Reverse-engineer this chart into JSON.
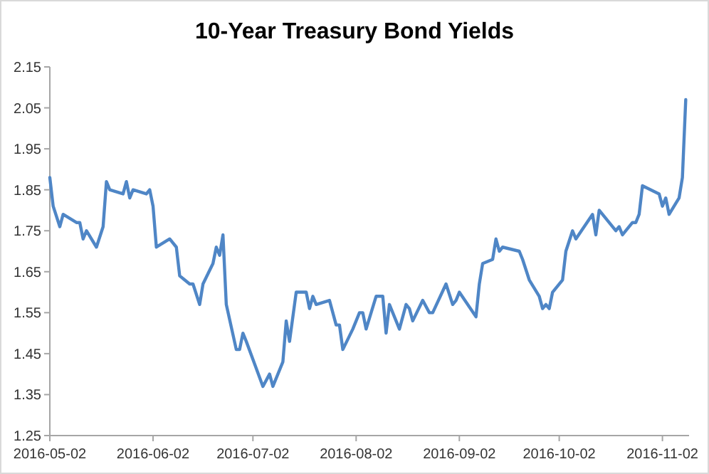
{
  "chart_data": {
    "type": "line",
    "title": "10-Year Treasury Bond Yields",
    "x": [
      "2016-05-02",
      "2016-05-03",
      "2016-05-05",
      "2016-05-06",
      "2016-05-10",
      "2016-05-11",
      "2016-05-12",
      "2016-05-13",
      "2016-05-16",
      "2016-05-18",
      "2016-05-19",
      "2016-05-20",
      "2016-05-24",
      "2016-05-25",
      "2016-05-26",
      "2016-05-27",
      "2016-05-31",
      "2016-06-01",
      "2016-06-02",
      "2016-06-03",
      "2016-06-07",
      "2016-06-09",
      "2016-06-10",
      "2016-06-13",
      "2016-06-14",
      "2016-06-16",
      "2016-06-17",
      "2016-06-20",
      "2016-06-21",
      "2016-06-22",
      "2016-06-23",
      "2016-06-24",
      "2016-06-27",
      "2016-06-28",
      "2016-06-29",
      "2016-06-30",
      "2016-07-05",
      "2016-07-07",
      "2016-07-08",
      "2016-07-11",
      "2016-07-12",
      "2016-07-13",
      "2016-07-15",
      "2016-07-18",
      "2016-07-19",
      "2016-07-20",
      "2016-07-21",
      "2016-07-25",
      "2016-07-27",
      "2016-07-28",
      "2016-07-29",
      "2016-08-01",
      "2016-08-03",
      "2016-08-04",
      "2016-08-05",
      "2016-08-08",
      "2016-08-10",
      "2016-08-11",
      "2016-08-12",
      "2016-08-15",
      "2016-08-17",
      "2016-08-18",
      "2016-08-19",
      "2016-08-22",
      "2016-08-24",
      "2016-08-25",
      "2016-08-29",
      "2016-08-31",
      "2016-09-01",
      "2016-09-02",
      "2016-09-07",
      "2016-09-08",
      "2016-09-09",
      "2016-09-12",
      "2016-09-13",
      "2016-09-14",
      "2016-09-15",
      "2016-09-20",
      "2016-09-21",
      "2016-09-23",
      "2016-09-26",
      "2016-09-27",
      "2016-09-28",
      "2016-09-29",
      "2016-09-30",
      "2016-10-03",
      "2016-10-04",
      "2016-10-06",
      "2016-10-07",
      "2016-10-12",
      "2016-10-13",
      "2016-10-14",
      "2016-10-17",
      "2016-10-19",
      "2016-10-20",
      "2016-10-21",
      "2016-10-24",
      "2016-10-25",
      "2016-10-26",
      "2016-10-27",
      "2016-11-01",
      "2016-11-02",
      "2016-11-03",
      "2016-11-04",
      "2016-11-07",
      "2016-11-08",
      "2016-11-09"
    ],
    "series": [
      {
        "color": "#4f86c6",
        "values": [
          1.88,
          1.81,
          1.76,
          1.79,
          1.77,
          1.77,
          1.73,
          1.75,
          1.71,
          1.76,
          1.87,
          1.85,
          1.84,
          1.87,
          1.83,
          1.85,
          1.84,
          1.85,
          1.81,
          1.71,
          1.73,
          1.71,
          1.64,
          1.62,
          1.62,
          1.57,
          1.62,
          1.67,
          1.71,
          1.69,
          1.74,
          1.57,
          1.46,
          1.46,
          1.5,
          1.48,
          1.37,
          1.4,
          1.37,
          1.43,
          1.53,
          1.48,
          1.6,
          1.6,
          1.56,
          1.59,
          1.57,
          1.58,
          1.52,
          1.52,
          1.46,
          1.51,
          1.55,
          1.55,
          1.51,
          1.59,
          1.59,
          1.5,
          1.57,
          1.51,
          1.57,
          1.56,
          1.53,
          1.58,
          1.55,
          1.55,
          1.62,
          1.57,
          1.58,
          1.6,
          1.54,
          1.62,
          1.67,
          1.68,
          1.73,
          1.7,
          1.71,
          1.7,
          1.68,
          1.63,
          1.59,
          1.56,
          1.57,
          1.56,
          1.6,
          1.63,
          1.7,
          1.75,
          1.73,
          1.79,
          1.74,
          1.8,
          1.77,
          1.75,
          1.76,
          1.74,
          1.77,
          1.77,
          1.79,
          1.86,
          1.84,
          1.81,
          1.83,
          1.79,
          1.83,
          1.88,
          2.07
        ]
      }
    ],
    "xlim": [
      "2016-05-02",
      "2016-11-10"
    ],
    "xticks": [
      {
        "value": "2016-05-02",
        "label": "2016-05-02"
      },
      {
        "value": "2016-06-02",
        "label": "2016-06-02"
      },
      {
        "value": "2016-07-02",
        "label": "2016-07-02"
      },
      {
        "value": "2016-08-02",
        "label": "2016-08-02"
      },
      {
        "value": "2016-09-02",
        "label": "2016-09-02"
      },
      {
        "value": "2016-10-02",
        "label": "2016-10-02"
      },
      {
        "value": "2016-11-02",
        "label": "2016-11-02"
      }
    ],
    "ylim": [
      1.25,
      2.15
    ],
    "yticks": [
      1.25,
      1.35,
      1.45,
      1.55,
      1.65,
      1.75,
      1.85,
      1.95,
      2.05,
      2.15
    ],
    "grid": false,
    "marker": "none",
    "line_style": "solid"
  }
}
